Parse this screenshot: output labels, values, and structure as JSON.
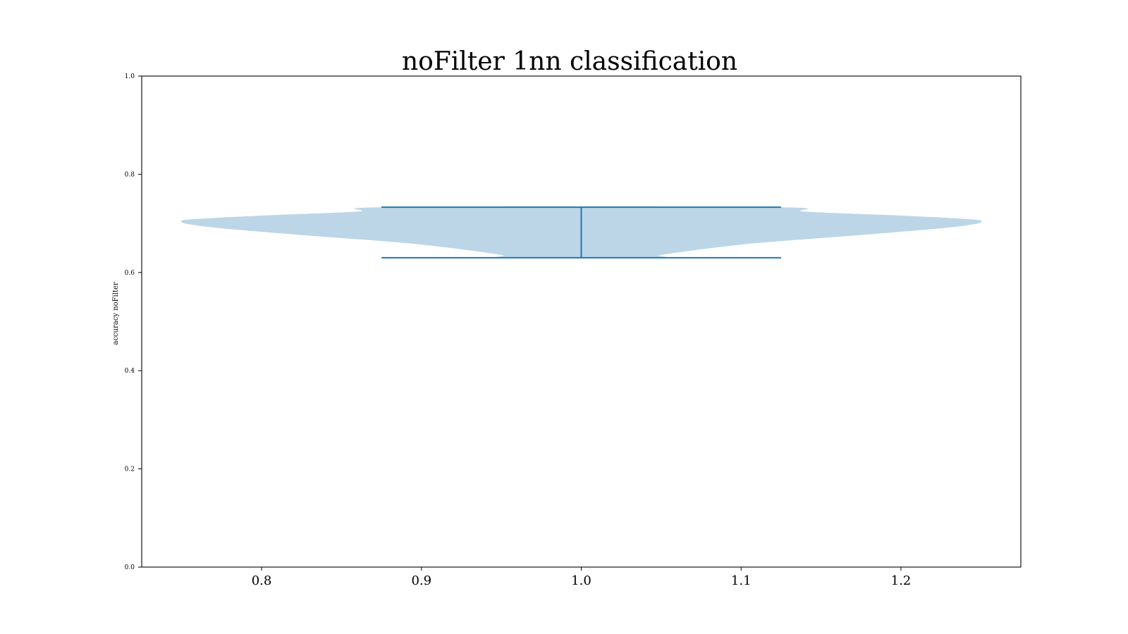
{
  "chart_data": {
    "type": "violin",
    "title": "noFilter 1nn classification",
    "xlabel": "",
    "ylabel": "accuracy noFilter",
    "xlim": [
      0.725,
      1.275
    ],
    "ylim": [
      0.0,
      1.0
    ],
    "x_ticks": [
      0.8,
      0.9,
      1.0,
      1.1,
      1.2
    ],
    "x_tick_labels": [
      "0.8",
      "0.9",
      "1.0",
      "1.1",
      "1.2"
    ],
    "y_ticks": [
      0.0,
      0.2,
      0.4,
      0.6,
      0.8,
      1.0
    ],
    "y_tick_labels": [
      "0.0",
      "0.2",
      "0.4",
      "0.6",
      "0.8",
      "1.0"
    ],
    "grid": false,
    "series": [
      {
        "position": 1.0,
        "min": 0.63,
        "max": 0.733,
        "density_profile": [
          {
            "y": 0.63,
            "halfwidth": 0.047
          },
          {
            "y": 0.635,
            "halfwidth": 0.049
          },
          {
            "y": 0.645,
            "halfwidth": 0.07
          },
          {
            "y": 0.66,
            "halfwidth": 0.11
          },
          {
            "y": 0.675,
            "halfwidth": 0.17
          },
          {
            "y": 0.69,
            "halfwidth": 0.225
          },
          {
            "y": 0.698,
            "halfwidth": 0.245
          },
          {
            "y": 0.703,
            "halfwidth": 0.25
          },
          {
            "y": 0.708,
            "halfwidth": 0.245
          },
          {
            "y": 0.716,
            "halfwidth": 0.2
          },
          {
            "y": 0.724,
            "halfwidth": 0.14
          },
          {
            "y": 0.733,
            "halfwidth": 0.12
          }
        ],
        "fill_color": "#bcd6e8",
        "line_color": "#1f77b4",
        "cap_halfwidth": 0.125
      }
    ]
  }
}
